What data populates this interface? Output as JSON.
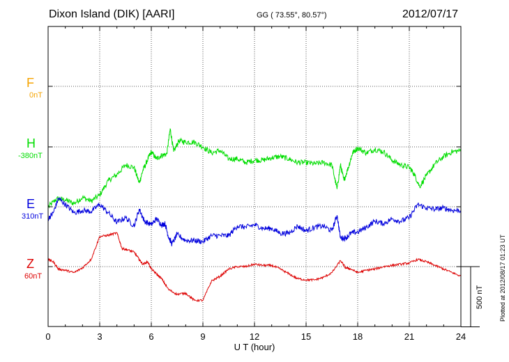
{
  "header": {
    "station": "Dixon Island (DIK)  [AARI]",
    "coords": "GG ( 73.55°,  80.57°)",
    "date": "2012/07/17"
  },
  "components": [
    {
      "letter": "F",
      "baseline": "0nT",
      "color": "#f5a300"
    },
    {
      "letter": "H",
      "baseline": "-380nT",
      "color": "#00dd00"
    },
    {
      "letter": "E",
      "baseline": "310nT",
      "color": "#0000dd"
    },
    {
      "letter": "Z",
      "baseline": "60nT",
      "color": "#dd0000"
    }
  ],
  "plotted_note": "Plotted at 2012/08/17 01:23 UT",
  "scale_bar_label": "500 nT",
  "chart_data": {
    "type": "line",
    "title": "Dixon Island (DIK)  [AARI]",
    "xlabel": "U T (hour)",
    "ylabel": "",
    "xlim": [
      0,
      24
    ],
    "xticks": [
      "0",
      "3",
      "6",
      "9",
      "12",
      "15",
      "18",
      "21",
      "24"
    ],
    "grid": true,
    "scale_bar_nT": 500,
    "series": [
      {
        "name": "H",
        "color": "#00dd00",
        "offset_nT": 0,
        "x": [
          0,
          0.5,
          1,
          1.5,
          2,
          2.5,
          3,
          3.5,
          4,
          4.5,
          5,
          5.3,
          5.5,
          5.8,
          6,
          6.3,
          6.6,
          6.9,
          7.1,
          7.3,
          7.6,
          8,
          8.5,
          9,
          9.5,
          10,
          10.5,
          11,
          11.5,
          12,
          12.5,
          13,
          13.5,
          14,
          14.5,
          15,
          15.5,
          16,
          16.5,
          16.8,
          17,
          17.2,
          17.5,
          17.7,
          18,
          18.5,
          19,
          19.5,
          20,
          20.5,
          21,
          21.3,
          21.6,
          22,
          22.5,
          23,
          23.5,
          24
        ],
        "y": [
          -500,
          -430,
          -440,
          -470,
          -420,
          -450,
          -400,
          -280,
          -230,
          -150,
          -170,
          -300,
          -200,
          -100,
          -40,
          -100,
          -70,
          -60,
          150,
          -40,
          50,
          40,
          40,
          0,
          -50,
          -30,
          -100,
          -100,
          -130,
          -110,
          -110,
          -90,
          -80,
          -100,
          -130,
          -130,
          -140,
          -130,
          -150,
          -350,
          -150,
          -280,
          -150,
          -50,
          -10,
          -50,
          -20,
          -40,
          -110,
          -150,
          -170,
          -230,
          -330,
          -240,
          -140,
          -80,
          -40,
          -30
        ]
      },
      {
        "name": "E",
        "color": "#0000dd",
        "offset_nT": 0,
        "x": [
          0,
          0.3,
          0.6,
          1,
          1.5,
          2,
          2.5,
          3,
          3.5,
          4,
          4.5,
          5,
          5.3,
          5.6,
          6,
          6.3,
          6.6,
          6.8,
          7,
          7.2,
          7.5,
          8,
          8.5,
          9,
          9.5,
          10,
          10.5,
          11,
          11.5,
          12,
          12.5,
          13,
          13.5,
          14,
          14.5,
          15,
          15.5,
          16,
          16.5,
          16.8,
          17,
          17.3,
          17.6,
          18,
          18.5,
          19,
          19.5,
          20,
          20.5,
          21,
          21.5,
          22,
          22.5,
          23,
          23.5,
          24
        ],
        "y": [
          -100,
          -50,
          70,
          20,
          -50,
          -30,
          -40,
          20,
          -50,
          -130,
          -90,
          -160,
          -20,
          -120,
          -150,
          -100,
          -150,
          -140,
          -250,
          -310,
          -230,
          -280,
          -280,
          -290,
          -240,
          -240,
          -240,
          -160,
          -170,
          -150,
          -180,
          -180,
          -220,
          -220,
          -160,
          -200,
          -170,
          -160,
          -200,
          -70,
          -260,
          -260,
          -220,
          -210,
          -170,
          -120,
          -140,
          -100,
          -120,
          -90,
          20,
          -10,
          -20,
          -10,
          -30,
          -30
        ]
      },
      {
        "name": "Z",
        "color": "#dd0000",
        "offset_nT": 0,
        "x": [
          0,
          0.3,
          0.6,
          1,
          1.5,
          2,
          2.5,
          3,
          3.5,
          4,
          4.3,
          4.6,
          5,
          5.3,
          5.5,
          5.8,
          6,
          6.3,
          6.6,
          7,
          7.5,
          8,
          8.5,
          9,
          9.5,
          10,
          10.5,
          11,
          11.5,
          12,
          12.5,
          13,
          13.5,
          14,
          14.5,
          15,
          15.5,
          16,
          16.5,
          17,
          17.3,
          17.6,
          18,
          18.5,
          19,
          19.5,
          20,
          20.5,
          21,
          21.5,
          22,
          22.5,
          23,
          23.5,
          24
        ],
        "y": [
          60,
          40,
          -20,
          -30,
          -50,
          -10,
          60,
          250,
          260,
          280,
          150,
          140,
          120,
          60,
          20,
          40,
          -20,
          -60,
          -100,
          -190,
          -230,
          -220,
          -280,
          -280,
          -120,
          -80,
          -20,
          0,
          0,
          20,
          10,
          10,
          -20,
          -60,
          -100,
          -110,
          -110,
          -90,
          -50,
          50,
          -10,
          -20,
          -50,
          -30,
          -20,
          0,
          10,
          20,
          30,
          60,
          40,
          10,
          -20,
          -50,
          -80
        ]
      }
    ]
  }
}
